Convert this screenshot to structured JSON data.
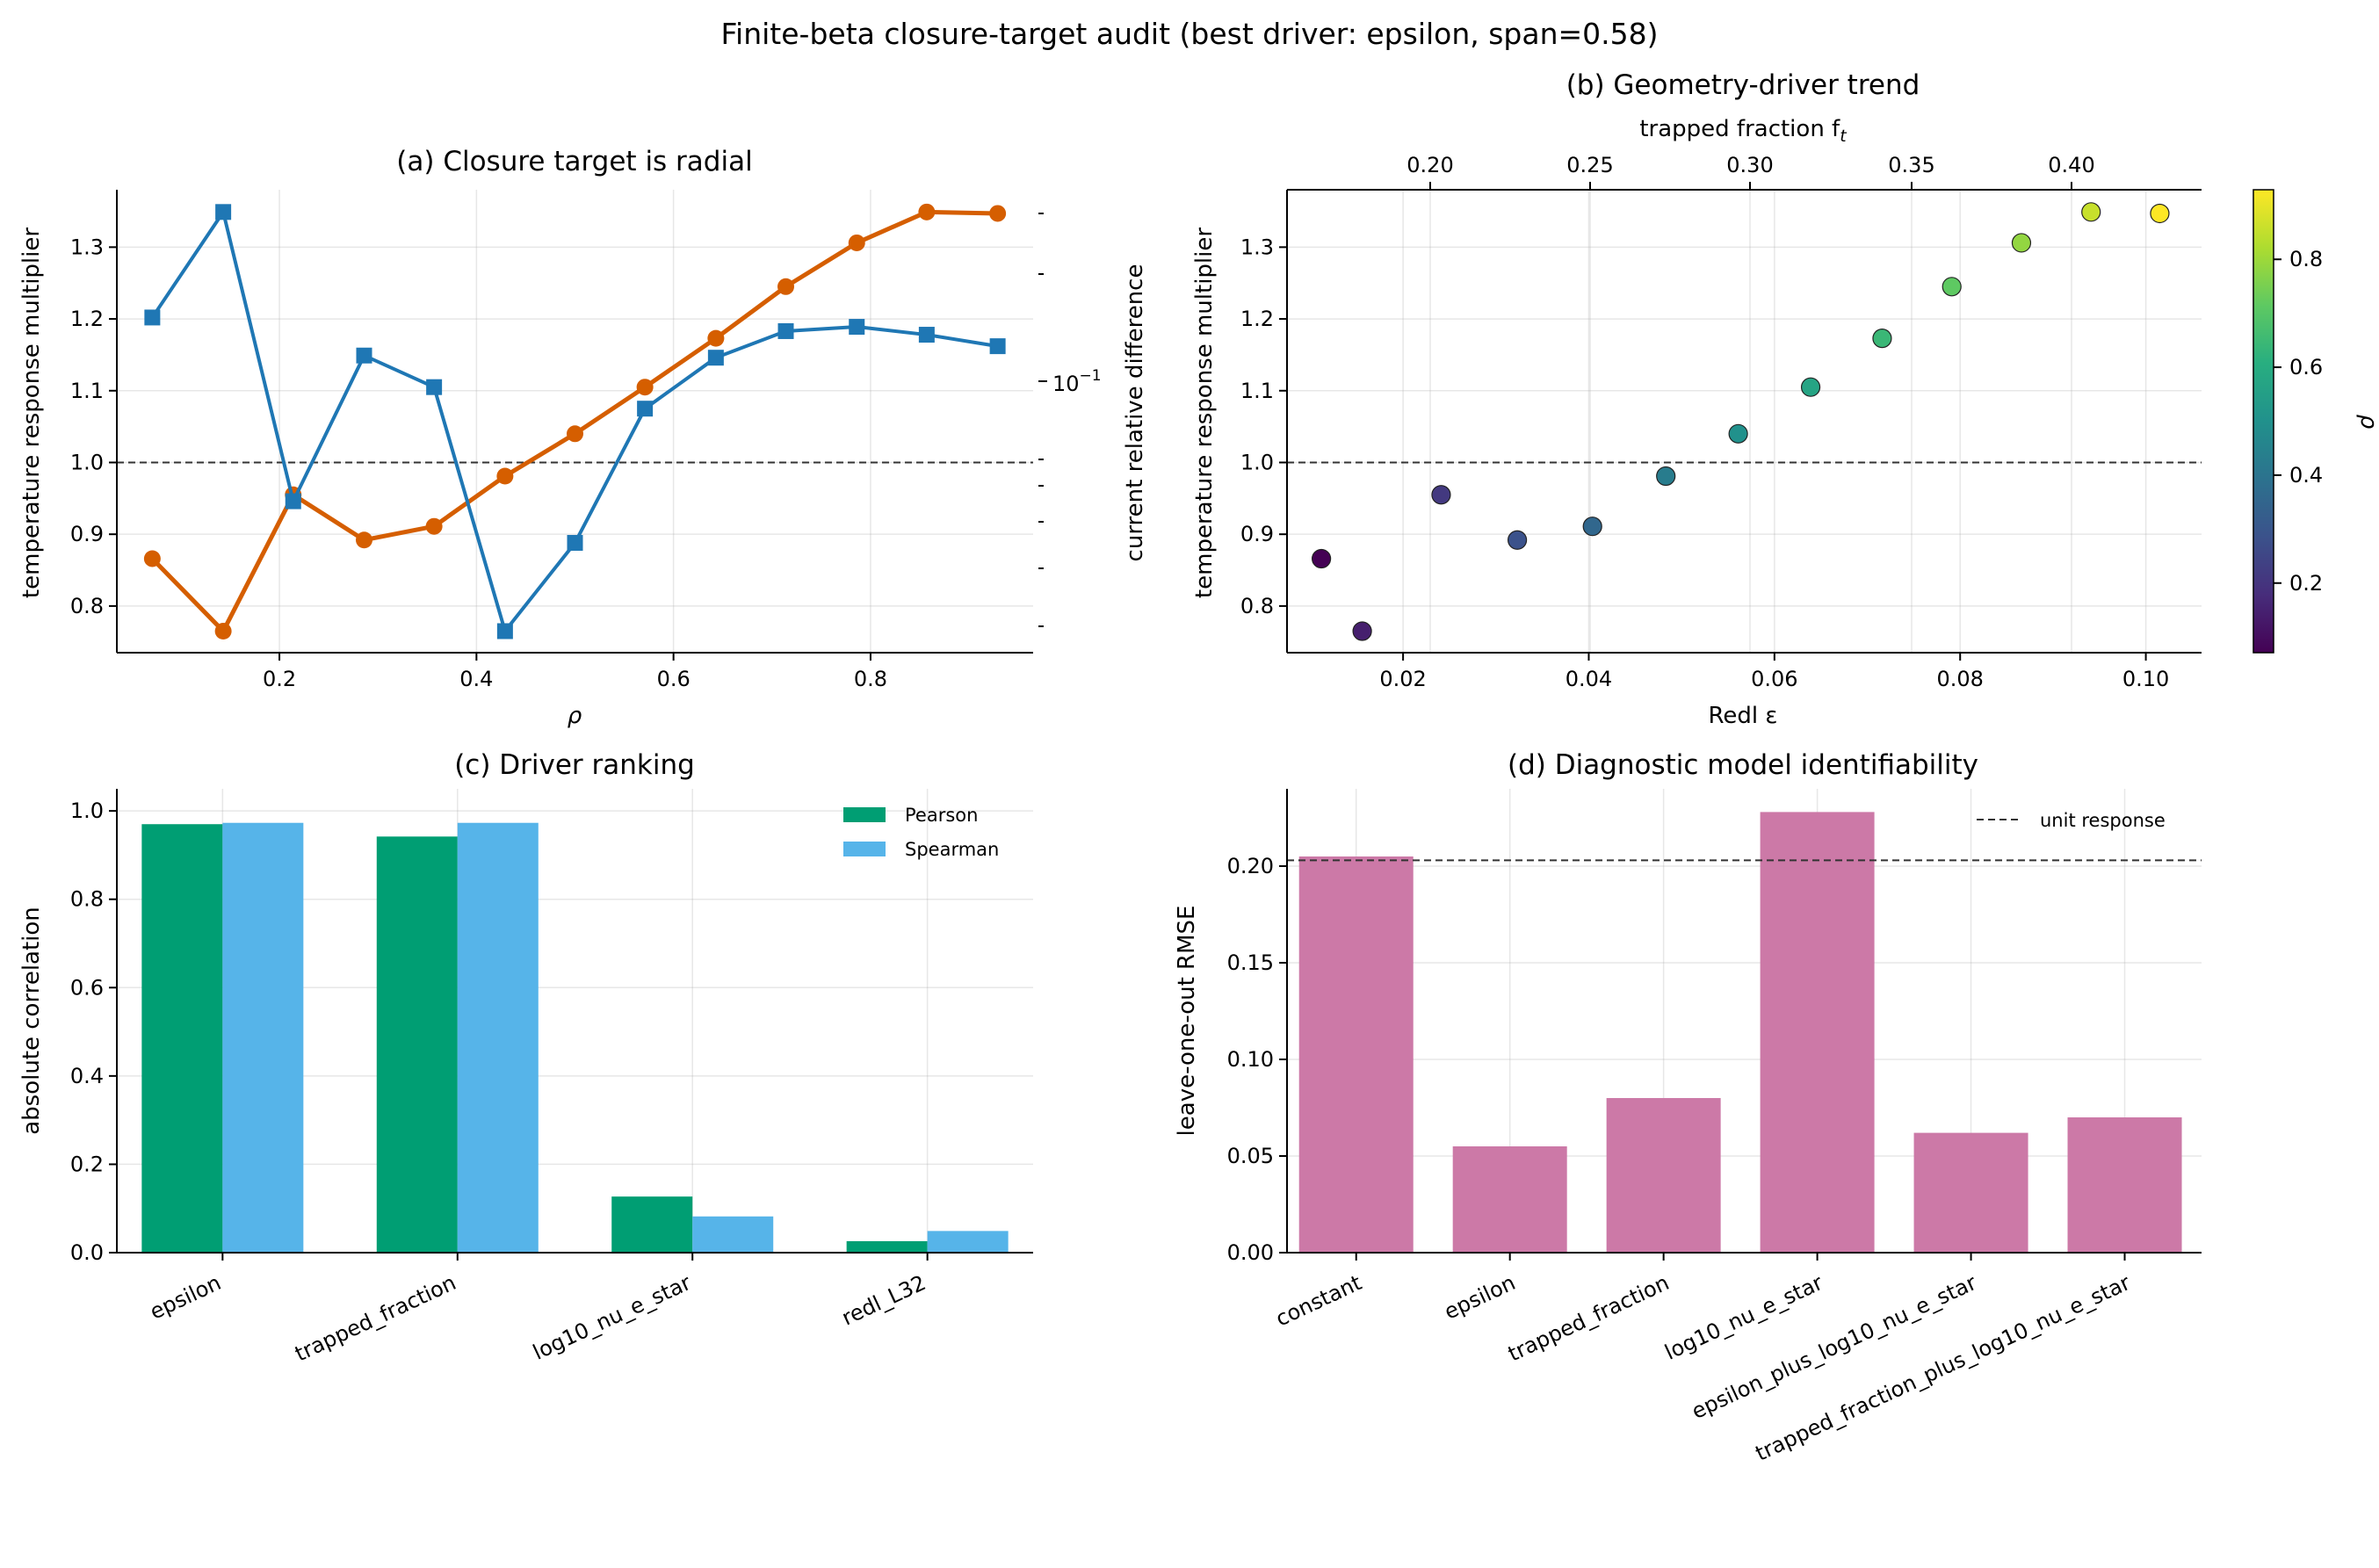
{
  "figure": {
    "suptitle": "Finite-beta closure-target audit (best driver: epsilon, span=0.58)"
  },
  "colors": {
    "orange": "#d55e00",
    "blue": "#1f77b4",
    "pearson": "#009e73",
    "spearman": "#56b4e9",
    "rmse": "#cc79a7",
    "dashed": "#333333"
  },
  "chart_data": [
    {
      "id": "a",
      "type": "line",
      "title": "(a) Closure target is radial",
      "xlabel": "ρ",
      "ylabel": "temperature response multiplier",
      "ylabel_right": "current relative difference",
      "xlim": [
        0.035,
        0.965
      ],
      "ylim": [
        0.735,
        1.38
      ],
      "xticks": [
        "0.2",
        "0.4",
        "0.6",
        "0.8"
      ],
      "yticks": [
        "0.8",
        "0.9",
        "1.0",
        "1.1",
        "1.2",
        "1.3"
      ],
      "right_axis_scale": "log",
      "right_tick_label": "10−1",
      "reference_line": 1.0,
      "series": [
        {
          "axis": "left",
          "marker": "circle",
          "x": [
            0.071,
            0.143,
            0.214,
            0.286,
            0.357,
            0.429,
            0.5,
            0.571,
            0.643,
            0.714,
            0.786,
            0.857,
            0.929
          ],
          "values": [
            0.866,
            0.765,
            0.955,
            0.892,
            0.911,
            0.981,
            1.04,
            1.105,
            1.173,
            1.245,
            1.306,
            1.349,
            1.347
          ]
        },
        {
          "axis": "right",
          "marker": "square",
          "x": [
            0.071,
            0.143,
            0.214,
            0.286,
            0.357,
            0.429,
            0.5,
            0.571,
            0.643,
            0.714,
            0.786,
            0.857,
            0.929
          ],
          "values": [
            1.202,
            1.349,
            0.946,
            1.149,
            1.105,
            0.765,
            0.888,
            1.075,
            1.146,
            1.183,
            1.189,
            1.178,
            1.162
          ]
        }
      ]
    },
    {
      "id": "b",
      "type": "scatter",
      "title": "(b) Geometry-driver trend",
      "xlabel": "Redl ε",
      "ylabel": "temperature response multiplier",
      "top_xlabel": "trapped fraction f",
      "top_xlabel_sub": "t",
      "colorbar_label": "ρ",
      "colorbar_range": [
        0.071,
        0.929
      ],
      "colorbar_ticks": [
        "0.2",
        "0.4",
        "0.6",
        "0.8"
      ],
      "xlim": [
        0.0075,
        0.106
      ],
      "ylim": [
        0.735,
        1.38
      ],
      "xticks": [
        "0.02",
        "0.04",
        "0.06",
        "0.08",
        "0.10"
      ],
      "yticks": [
        "0.8",
        "0.9",
        "1.0",
        "1.1",
        "1.2",
        "1.3"
      ],
      "top_xticks": [
        "0.20",
        "0.25",
        "0.30",
        "0.35",
        "0.40"
      ],
      "reference_line": 1.0,
      "x": [
        0.0112,
        0.0156,
        0.0241,
        0.0323,
        0.0404,
        0.0483,
        0.0561,
        0.0639,
        0.0716,
        0.0791,
        0.0866,
        0.0941,
        0.1015
      ],
      "values": [
        0.866,
        0.765,
        0.955,
        0.892,
        0.911,
        0.981,
        1.04,
        1.105,
        1.173,
        1.245,
        1.306,
        1.349,
        1.347
      ],
      "rho": [
        0.071,
        0.143,
        0.214,
        0.286,
        0.357,
        0.429,
        0.5,
        0.571,
        0.643,
        0.714,
        0.786,
        0.857,
        0.929
      ]
    },
    {
      "id": "c",
      "type": "bar",
      "title": "(c) Driver ranking",
      "ylabel": "absolute correlation",
      "ylim": [
        0,
        1.05
      ],
      "yticks": [
        "0.0",
        "0.2",
        "0.4",
        "0.6",
        "0.8",
        "1.0"
      ],
      "legend": "top-right",
      "categories": [
        "epsilon",
        "trapped_fraction",
        "log10_nu_e_star",
        "redl_L32"
      ],
      "series": [
        {
          "name": "Pearson",
          "values": [
            0.97,
            0.942,
            0.127,
            0.026
          ]
        },
        {
          "name": "Spearman",
          "values": [
            0.973,
            0.973,
            0.082,
            0.049
          ]
        }
      ]
    },
    {
      "id": "d",
      "type": "bar",
      "title": "(d) Diagnostic model identifiability",
      "ylabel": "leave-one-out RMSE",
      "ylim": [
        0,
        0.24
      ],
      "yticks": [
        "0.00",
        "0.05",
        "0.10",
        "0.15",
        "0.20"
      ],
      "legend": "top-right",
      "reference_line": 0.203,
      "reference_label": "unit response",
      "categories": [
        "constant",
        "epsilon",
        "trapped_fraction",
        "log10_nu_e_star",
        "epsilon_plus_log10_nu_e_star",
        "trapped_fraction_plus_log10_nu_e_star"
      ],
      "values": [
        0.205,
        0.055,
        0.08,
        0.228,
        0.062,
        0.07
      ]
    }
  ]
}
